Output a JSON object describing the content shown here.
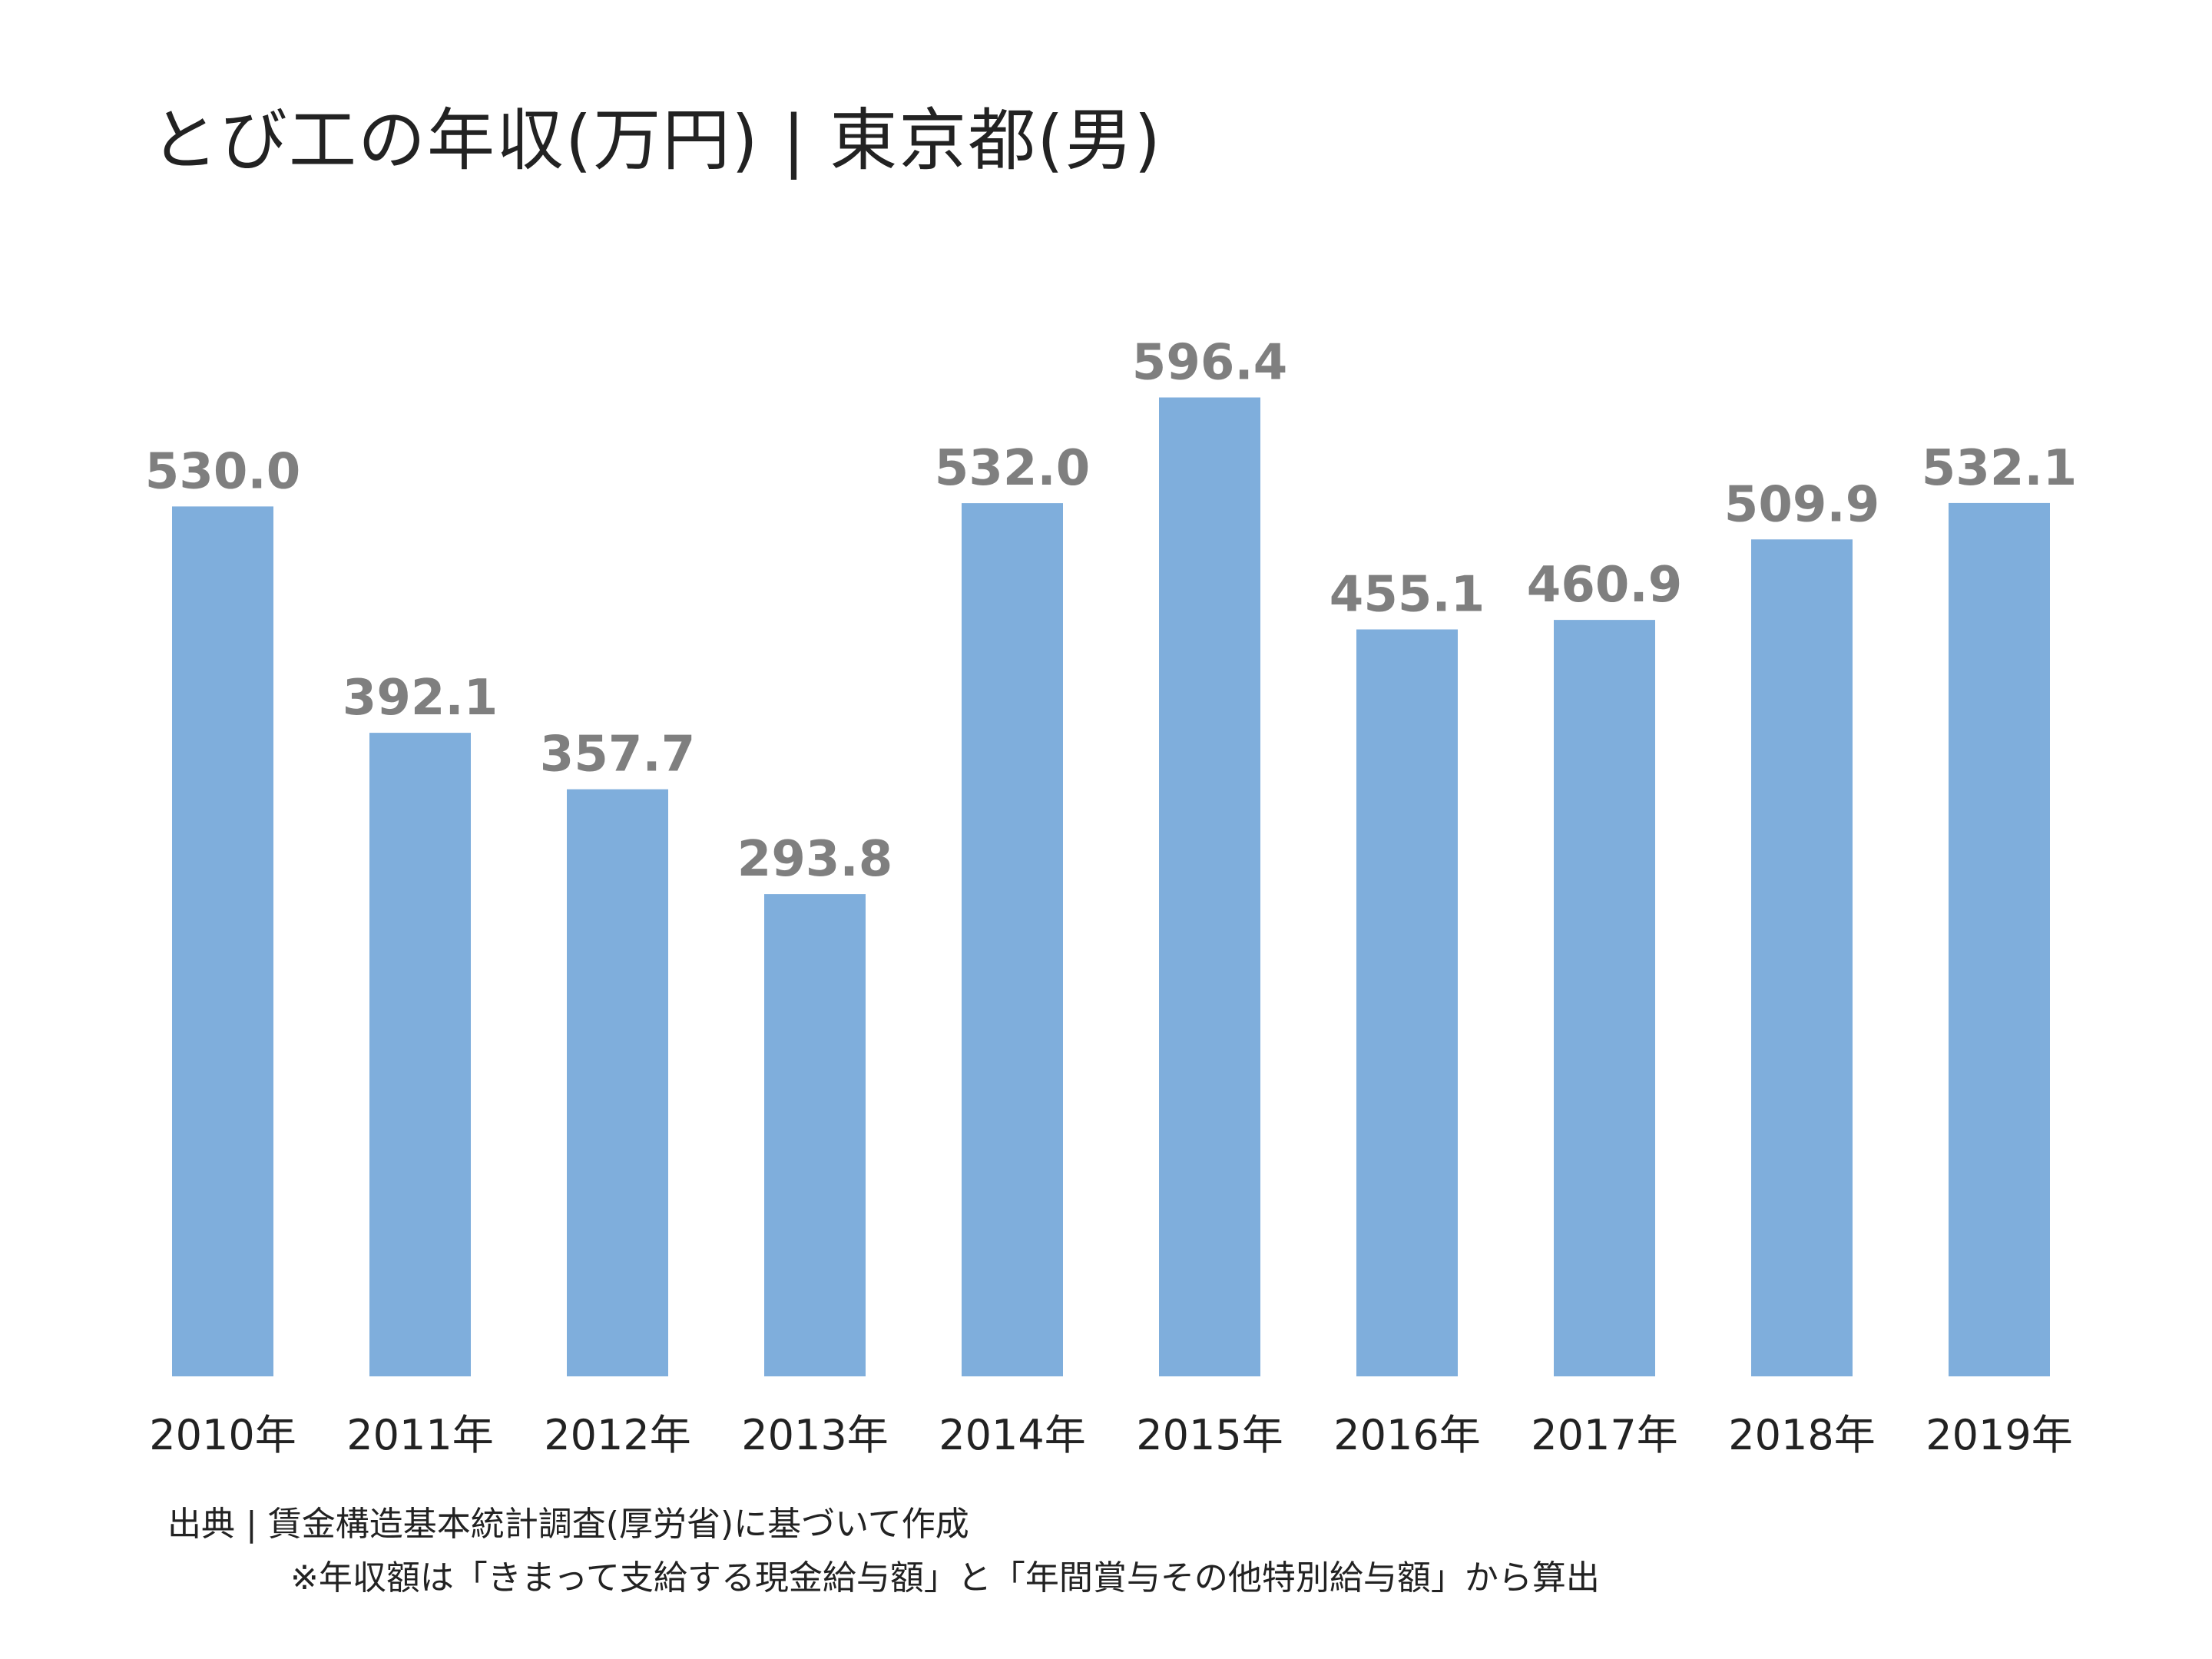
{
  "chart_data": {
    "type": "bar",
    "title": "とび工の年収(万円) | 東京都(男)",
    "categories": [
      "2010年",
      "2011年",
      "2012年",
      "2013年",
      "2014年",
      "2015年",
      "2016年",
      "2017年",
      "2018年",
      "2019年"
    ],
    "values": [
      530.0,
      392.1,
      357.7,
      293.8,
      532.0,
      596.4,
      455.1,
      460.9,
      509.9,
      532.1
    ],
    "value_labels": [
      "530.0",
      "392.1",
      "357.7",
      "293.8",
      "532.0",
      "596.4",
      "455.1",
      "460.9",
      "509.9",
      "532.1"
    ],
    "xlabel": "",
    "ylabel": "",
    "ylim": [
      0,
      600
    ],
    "grid": false,
    "legend": "none",
    "bar_color": "#7faedc",
    "label_color": "#7f7f7f"
  },
  "source": {
    "line1": "出典 | 賃金構造基本統計調査(厚労省)に基づいて作成",
    "line2": "※年収額は「きまって支給する現金給与額」と「年間賞与その他特別給与額」から算出"
  }
}
